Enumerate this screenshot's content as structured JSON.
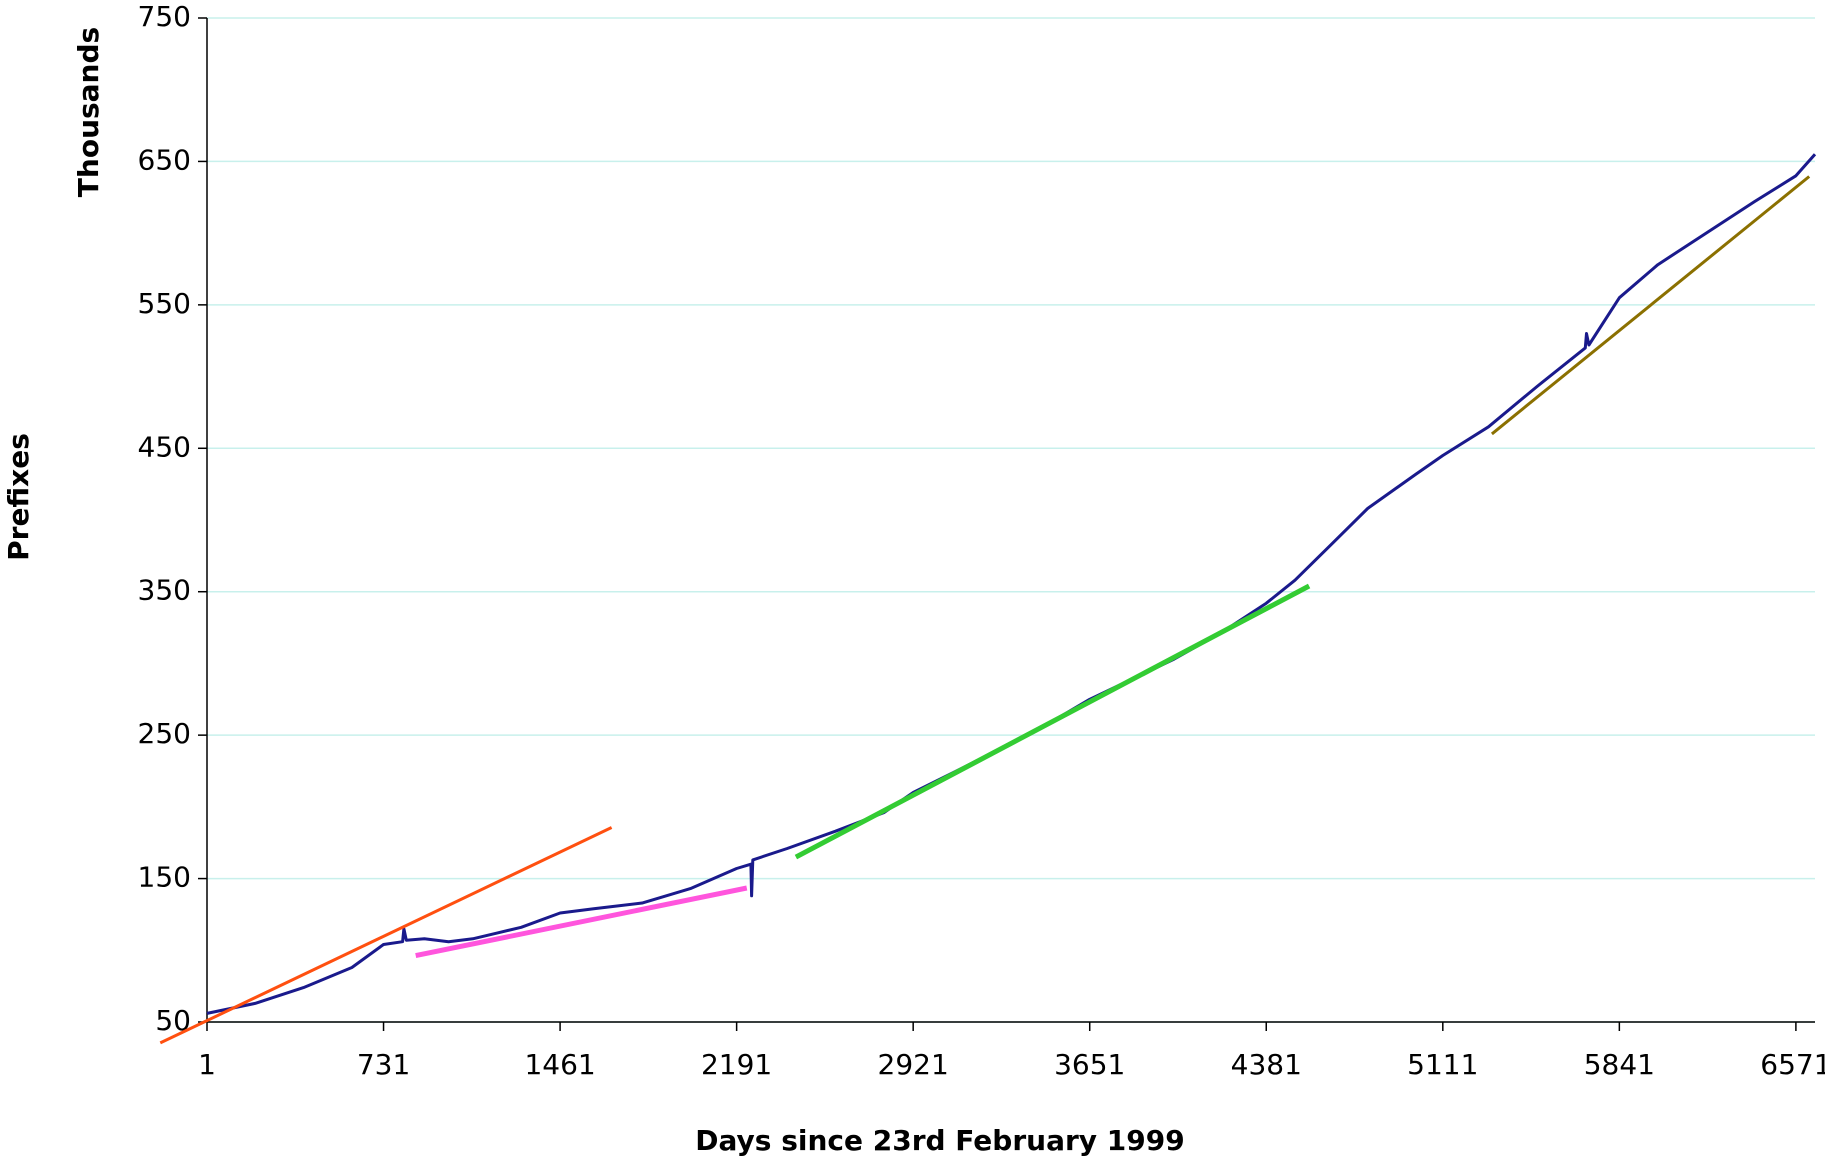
{
  "chart_data": {
    "type": "line",
    "x_label": "Days since 23rd February 1999",
    "y_label": "Prefixes",
    "y_unit_label": "Thousands",
    "xlim": [
      1,
      6650
    ],
    "xticks": [
      1,
      731,
      1461,
      2191,
      2921,
      3651,
      4381,
      5111,
      5841,
      6571
    ],
    "ylim": [
      50,
      750
    ],
    "yticks": [
      50,
      150,
      250,
      350,
      450,
      550,
      650,
      750
    ],
    "grid": true,
    "series": [
      {
        "color": "#1a1a8c",
        "width": 3,
        "x": [
          1,
          200,
          400,
          600,
          731,
          810,
          815,
          825,
          900,
          1000,
          1100,
          1200,
          1300,
          1461,
          1600,
          1800,
          2000,
          2191,
          2250,
          2253,
          2258,
          2400,
          2600,
          2800,
          2921,
          3100,
          3300,
          3500,
          3651,
          3800,
          4000,
          4200,
          4381,
          4500,
          4650,
          4800,
          5000,
          5111,
          5300,
          5500,
          5700,
          5705,
          5715,
          5841,
          6000,
          6200,
          6400,
          6571,
          6650
        ],
        "values": [
          56,
          63,
          74,
          88,
          104,
          106,
          115,
          107,
          108,
          106,
          108,
          112,
          116,
          126,
          129,
          133,
          143,
          157,
          160,
          138,
          163,
          171,
          183,
          196,
          210,
          225,
          242,
          260,
          275,
          287,
          303,
          322,
          342,
          358,
          383,
          408,
          432,
          445,
          465,
          493,
          520,
          530,
          522,
          555,
          578,
          600,
          622,
          640,
          655
        ]
      },
      {
        "color": "#ff5010",
        "width": 3,
        "x": [
          -192,
          1674
        ],
        "values": [
          35.4,
          185.6
        ]
      },
      {
        "color": "#ff55dd",
        "width": 5,
        "x": [
          864,
          2233
        ],
        "values": [
          96.3,
          143.4
        ]
      },
      {
        "color": "#33cc33",
        "width": 5,
        "x": [
          2436,
          4558
        ],
        "values": [
          165,
          354
        ]
      },
      {
        "color": "#8b7000",
        "width": 3,
        "x": [
          5314,
          6626
        ],
        "values": [
          460,
          639.5
        ]
      }
    ]
  }
}
